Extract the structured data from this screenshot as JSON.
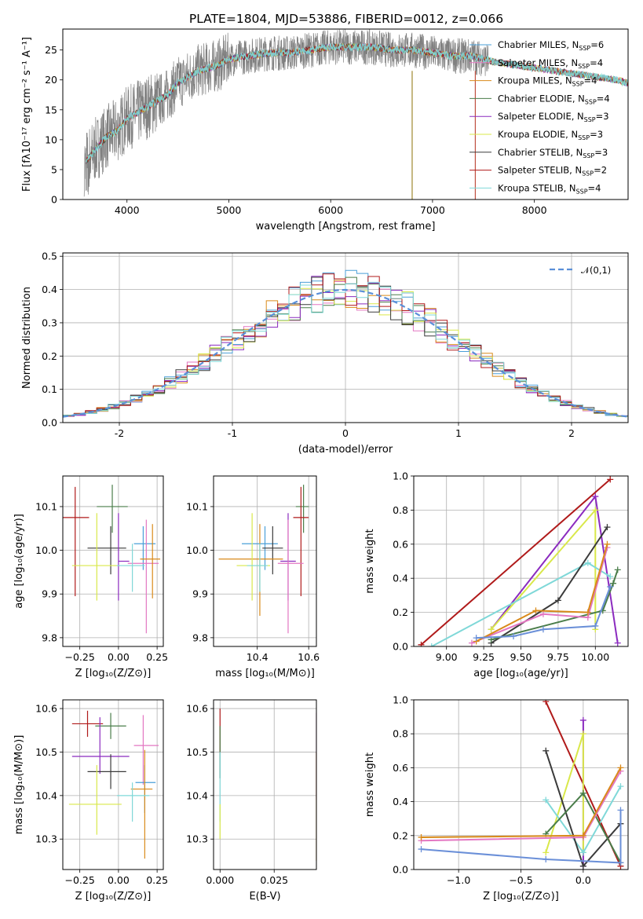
{
  "title": "PLATE=1804, MJD=53886, FIBERID=0012, z=0.066",
  "chart_data": [
    {
      "id": "spectrum",
      "type": "line",
      "xlabel": "wavelength [Angstrom, rest frame]",
      "ylabel": "Flux [fλ10⁻¹⁷ erg cm⁻² s⁻¹ A⁻¹]",
      "xlim": [
        3370,
        8920
      ],
      "ylim": [
        0,
        28.5
      ],
      "xticks": [
        4000,
        5000,
        6000,
        7000,
        8000
      ],
      "yticks": [
        0,
        5,
        10,
        15,
        20,
        25
      ],
      "grid": false,
      "legend_position": "top-right",
      "legend": [
        {
          "base": "Chabrier MILES, N",
          "sub": "SSP",
          "tail": "=6",
          "color": "#4a9fd8"
        },
        {
          "base": "Salpeter MILES, N",
          "sub": "SSP",
          "tail": "=4",
          "color": "#e377c2"
        },
        {
          "base": "Kroupa MILES, N",
          "sub": "SSP",
          "tail": "=4",
          "color": "#d98a1a"
        },
        {
          "base": "Chabrier ELODIE, N",
          "sub": "SSP",
          "tail": "=4",
          "color": "#4a7d4a"
        },
        {
          "base": "Salpeter ELODIE, N",
          "sub": "SSP",
          "tail": "=3",
          "color": "#8b2bbf"
        },
        {
          "base": "Kroupa ELODIE, N",
          "sub": "SSP",
          "tail": "=3",
          "color": "#d9e84a"
        },
        {
          "base": "Chabrier STELIB, N",
          "sub": "SSP",
          "tail": "=3",
          "color": "#3a3a3a"
        },
        {
          "base": "Salpeter STELIB, N",
          "sub": "SSP",
          "tail": "=2",
          "color": "#b01a1a"
        },
        {
          "base": "Kroupa STELIB, N",
          "sub": "SSP",
          "tail": "=4",
          "color": "#7fd8d8"
        }
      ],
      "data_color": "#808080",
      "model_color": "#7fd8d8",
      "continuum": {
        "x": [
          3580,
          3700,
          3800,
          3900,
          4000,
          4100,
          4200,
          4300,
          4400,
          4500,
          4600,
          4700,
          4800,
          4900,
          5000,
          5200,
          5400,
          5600,
          5800,
          6000,
          6200,
          6400,
          6600,
          6800,
          7000,
          7200,
          7400,
          7600,
          7800,
          8000,
          8200,
          8400,
          8600,
          8800,
          8920
        ],
        "y": [
          6,
          8.5,
          10.5,
          11.5,
          13.5,
          14.5,
          15.5,
          16.5,
          17.5,
          19.5,
          20.5,
          21.5,
          22.0,
          22.5,
          23.5,
          24.0,
          24.5,
          24.5,
          25.0,
          25.5,
          25.5,
          25.5,
          25.0,
          25.0,
          24.5,
          24.0,
          24.0,
          23.0,
          22.5,
          22.0,
          21.5,
          21.0,
          20.5,
          20.0,
          19.5
        ]
      },
      "data_range": [
        3580,
        7550
      ],
      "model_range": [
        3600,
        8920
      ],
      "spikes": [
        {
          "x": 6800,
          "y0": 0,
          "y1": 21.5,
          "color": "#a08830"
        },
        {
          "x": 7420,
          "y0": 0,
          "y1": 21.5,
          "color": "#c05040"
        }
      ]
    },
    {
      "id": "residual-histogram",
      "type": "histogram",
      "xlabel": "(data-model)/error",
      "ylabel": "Normed distribution",
      "xlim": [
        -2.5,
        2.5
      ],
      "ylim": [
        0,
        0.51
      ],
      "xticks": [
        -2,
        -1,
        0,
        1,
        2
      ],
      "yticks": [
        0.0,
        0.1,
        0.2,
        0.3,
        0.4,
        0.5
      ],
      "ytick_labels": [
        "0.0",
        "0.1",
        "0.2",
        "0.3",
        "0.4",
        "0.5"
      ],
      "grid": true,
      "bin_width": 0.1,
      "reference": {
        "label": "𝒩(0,1)",
        "color": "#5a8fd8",
        "mean": 0,
        "sigma": 1
      },
      "legend_position": "top-right",
      "series_colors": [
        "#4a9fd8",
        "#e377c2",
        "#d98a1a",
        "#4a7d4a",
        "#8b2bbf",
        "#d9e84a",
        "#3a3a3a",
        "#b01a1a",
        "#7fd8d8"
      ]
    },
    {
      "id": "age-vs-Z",
      "type": "errorbar",
      "xlabel": "Z [log₁₀(Z/Z⊙)]",
      "ylabel": "age  [log₁₀(age/yr)]",
      "xlim": [
        -0.36,
        0.29
      ],
      "ylim": [
        9.78,
        10.17
      ],
      "xticks": [
        -0.25,
        0.0,
        0.25
      ],
      "xtick_labels": [
        "−0.25",
        "0.00",
        "0.25"
      ],
      "yticks": [
        9.8,
        9.9,
        10.0,
        10.1
      ],
      "ytick_labels": [
        "9.8",
        "9.9",
        "10.0",
        "10.1"
      ],
      "grid": true,
      "points": [
        {
          "x": -0.28,
          "y": 10.075,
          "xerr": [
            0.09,
            0.09
          ],
          "yerr": [
            0.18,
            0.07
          ],
          "color": "#b01a1a"
        },
        {
          "x": -0.04,
          "y": 10.1,
          "xerr": [
            0.1,
            0.1
          ],
          "yerr": [
            0.06,
            0.05
          ],
          "color": "#4a7d4a"
        },
        {
          "x": -0.05,
          "y": 10.005,
          "xerr": [
            0.15,
            0.1
          ],
          "yerr": [
            0.06,
            0.05
          ],
          "color": "#3a3a3a"
        },
        {
          "x": 0.0,
          "y": 9.975,
          "xerr": [
            0.0,
            0.07
          ],
          "yerr": [
            0.09,
            0.11
          ],
          "color": "#8b2bbf"
        },
        {
          "x": -0.14,
          "y": 9.965,
          "xerr": [
            0.16,
            0.15
          ],
          "yerr": [
            0.08,
            0.12
          ],
          "color": "#d9e84a"
        },
        {
          "x": 0.16,
          "y": 10.015,
          "xerr": [
            0.06,
            0.08
          ],
          "yerr": [
            0.06,
            0.04
          ],
          "color": "#4a9fd8"
        },
        {
          "x": 0.18,
          "y": 9.97,
          "xerr": [
            0.12,
            0.08
          ],
          "yerr": [
            0.16,
            0.1
          ],
          "color": "#e377c2"
        },
        {
          "x": 0.22,
          "y": 9.98,
          "xerr": [
            0.08,
            0.05
          ],
          "yerr": [
            0.09,
            0.08
          ],
          "color": "#d98a1a"
        },
        {
          "x": 0.09,
          "y": 9.965,
          "xerr": [
            0.1,
            0.08
          ],
          "yerr": [
            0.06,
            0.05
          ],
          "color": "#7fd8d8"
        }
      ]
    },
    {
      "id": "age-vs-mass",
      "type": "errorbar",
      "xlabel": "mass [log₁₀(M/M⊙)]",
      "ylabel": "",
      "xlim": [
        10.23,
        10.63
      ],
      "ylim": [
        9.78,
        10.17
      ],
      "xticks": [
        10.4,
        10.6
      ],
      "xtick_labels": [
        "10.4",
        "10.6"
      ],
      "yticks": [
        9.8,
        9.9,
        10.0,
        10.1
      ],
      "ytick_labels": [
        "9.8",
        "9.9",
        "10.0",
        "10.1"
      ],
      "grid": true,
      "points": [
        {
          "x": 10.58,
          "y": 10.1,
          "xerr": [
            0.03,
            0.02
          ],
          "yerr": [
            0.06,
            0.05
          ],
          "color": "#4a7d4a"
        },
        {
          "x": 10.57,
          "y": 10.075,
          "xerr": [
            0.03,
            0.03
          ],
          "yerr": [
            0.18,
            0.07
          ],
          "color": "#b01a1a"
        },
        {
          "x": 10.43,
          "y": 10.015,
          "xerr": [
            0.09,
            0.05
          ],
          "yerr": [
            0.06,
            0.04
          ],
          "color": "#4a9fd8"
        },
        {
          "x": 10.46,
          "y": 10.005,
          "xerr": [
            0.04,
            0.04
          ],
          "yerr": [
            0.06,
            0.05
          ],
          "color": "#3a3a3a"
        },
        {
          "x": 10.41,
          "y": 9.98,
          "xerr": [
            0.16,
            0.09
          ],
          "yerr": [
            0.13,
            0.08
          ],
          "color": "#d98a1a"
        },
        {
          "x": 10.52,
          "y": 9.975,
          "xerr": [
            0.03,
            0.03
          ],
          "yerr": [
            0.09,
            0.11
          ],
          "color": "#8b2bbf"
        },
        {
          "x": 10.52,
          "y": 9.97,
          "xerr": [
            0.04,
            0.06
          ],
          "yerr": [
            0.16,
            0.1
          ],
          "color": "#e377c2"
        },
        {
          "x": 10.38,
          "y": 9.965,
          "xerr": [
            0.06,
            0.07
          ],
          "yerr": [
            0.08,
            0.12
          ],
          "color": "#d9e84a"
        },
        {
          "x": 10.41,
          "y": 9.965,
          "xerr": [
            0.05,
            0.03
          ],
          "yerr": [
            0.06,
            0.05
          ],
          "color": "#7fd8d8"
        }
      ]
    },
    {
      "id": "massweight-vs-age",
      "type": "line",
      "xlabel": "age  [log₁₀(age/yr)]",
      "ylabel": "mass weight",
      "xlim": [
        8.78,
        10.22
      ],
      "ylim": [
        0.0,
        1.0
      ],
      "xticks": [
        9.0,
        9.25,
        9.5,
        9.75,
        10.0
      ],
      "xtick_labels": [
        "9.00",
        "9.25",
        "9.50",
        "9.75",
        "10.00"
      ],
      "yticks": [
        0.0,
        0.2,
        0.4,
        0.6,
        0.8,
        1.0
      ],
      "ytick_labels": [
        "0.0",
        "0.2",
        "0.4",
        "0.6",
        "0.8",
        "1.0"
      ],
      "grid": true,
      "series": [
        {
          "color": "#b01a1a",
          "x": [
            8.83,
            10.1
          ],
          "y": [
            0.01,
            0.98
          ]
        },
        {
          "color": "#8b2bbf",
          "x": [
            9.3,
            10.0,
            10.15
          ],
          "y": [
            0.1,
            0.88,
            0.02
          ]
        },
        {
          "color": "#d9e84a",
          "x": [
            9.3,
            10.0,
            10.0
          ],
          "y": [
            0.1,
            0.8,
            0.1
          ]
        },
        {
          "color": "#7fd8d8",
          "x": [
            8.9,
            9.95,
            10.1
          ],
          "y": [
            0.0,
            0.49,
            0.41
          ]
        },
        {
          "color": "#3a3a3a",
          "x": [
            9.3,
            9.75,
            10.08
          ],
          "y": [
            0.02,
            0.27,
            0.7
          ]
        },
        {
          "color": "#4a7d4a",
          "x": [
            9.3,
            10.05,
            10.12,
            10.15
          ],
          "y": [
            0.04,
            0.21,
            0.37,
            0.45
          ]
        },
        {
          "color": "#e377c2",
          "x": [
            9.17,
            9.65,
            9.95,
            10.08
          ],
          "y": [
            0.02,
            0.19,
            0.17,
            0.58
          ]
        },
        {
          "color": "#d98a1a",
          "x": [
            9.2,
            9.6,
            9.95,
            10.08
          ],
          "y": [
            0.03,
            0.21,
            0.2,
            0.6
          ]
        },
        {
          "color": "#6a8fd8",
          "x": [
            9.2,
            9.45,
            9.65,
            10.0,
            10.1
          ],
          "y": [
            0.05,
            0.06,
            0.1,
            0.12,
            0.35
          ]
        }
      ]
    },
    {
      "id": "mass-vs-Z",
      "type": "errorbar",
      "xlabel": "Z [log₁₀(Z/Z⊙)]",
      "ylabel": "mass [log₁₀(M/M⊙)]",
      "xlim": [
        -0.36,
        0.29
      ],
      "ylim": [
        10.23,
        10.62
      ],
      "xticks": [
        -0.25,
        0.0,
        0.25
      ],
      "xtick_labels": [
        "−0.25",
        "0.00",
        "0.25"
      ],
      "yticks": [
        10.3,
        10.4,
        10.5,
        10.6
      ],
      "ytick_labels": [
        "10.3",
        "10.4",
        "10.5",
        "10.6"
      ],
      "grid": true,
      "points": [
        {
          "x": -0.2,
          "y": 10.565,
          "xerr": [
            0.1,
            0.1
          ],
          "yerr": [
            0.03,
            0.03
          ],
          "color": "#b01a1a"
        },
        {
          "x": -0.05,
          "y": 10.56,
          "xerr": [
            0.1,
            0.1
          ],
          "yerr": [
            0.03,
            0.03
          ],
          "color": "#4a7d4a"
        },
        {
          "x": -0.12,
          "y": 10.49,
          "xerr": [
            0.18,
            0.19
          ],
          "yerr": [
            0.04,
            0.09
          ],
          "color": "#8b2bbf"
        },
        {
          "x": -0.05,
          "y": 10.455,
          "xerr": [
            0.15,
            0.1
          ],
          "yerr": [
            0.04,
            0.04
          ],
          "color": "#3a3a3a"
        },
        {
          "x": 0.16,
          "y": 10.515,
          "xerr": [
            0.06,
            0.1
          ],
          "yerr": [
            0.09,
            0.07
          ],
          "color": "#e377c2"
        },
        {
          "x": 0.17,
          "y": 10.43,
          "xerr": [
            0.06,
            0.07
          ],
          "yerr": [
            0.07,
            0.04
          ],
          "color": "#4a9fd8"
        },
        {
          "x": 0.17,
          "y": 10.415,
          "xerr": [
            0.09,
            0.05
          ],
          "yerr": [
            0.16,
            0.09
          ],
          "color": "#d98a1a"
        },
        {
          "x": -0.14,
          "y": 10.38,
          "xerr": [
            0.18,
            0.16
          ],
          "yerr": [
            0.07,
            0.09
          ],
          "color": "#d9e84a"
        },
        {
          "x": 0.09,
          "y": 10.4,
          "xerr": [
            0.1,
            0.11
          ],
          "yerr": [
            0.06,
            0.03
          ],
          "color": "#7fd8d8"
        }
      ]
    },
    {
      "id": "mass-vs-ebv",
      "type": "errorbar",
      "xlabel": "E(B-V)",
      "ylabel": "",
      "xlim": [
        -0.003,
        0.0445
      ],
      "ylim": [
        10.23,
        10.62
      ],
      "xticks": [
        0.0,
        0.025
      ],
      "xtick_labels": [
        "0.000",
        "0.025"
      ],
      "yticks": [
        10.3,
        10.4,
        10.5,
        10.6
      ],
      "ytick_labels": [
        "10.3",
        "10.4",
        "10.5",
        "10.6"
      ],
      "grid": true,
      "points": [
        {
          "x": 0.0,
          "y": 10.52,
          "xerr": [
            0,
            0
          ],
          "yerr": [
            0.08,
            0.08
          ],
          "color": "#b01a1a"
        },
        {
          "x": 0.0,
          "y": 10.5,
          "xerr": [
            0,
            0
          ],
          "yerr": [
            0.06,
            0.06
          ],
          "color": "#4a7d4a"
        },
        {
          "x": 0.0,
          "y": 10.42,
          "xerr": [
            0,
            0
          ],
          "yerr": [
            0.08,
            0.08
          ],
          "color": "#7fd8d8"
        },
        {
          "x": 0.0,
          "y": 10.34,
          "xerr": [
            0,
            0
          ],
          "yerr": [
            0.04,
            0.04
          ],
          "color": "#d9e84a"
        },
        {
          "x": 0.0445,
          "y": 10.48,
          "xerr": [
            0,
            0
          ],
          "yerr": [
            0.09,
            0.11
          ],
          "color": "#e377c2"
        },
        {
          "x": 0.0445,
          "y": 10.37,
          "xerr": [
            0,
            0
          ],
          "yerr": [
            0.12,
            0.13
          ],
          "color": "#d98a1a"
        }
      ]
    },
    {
      "id": "massweight-vs-Z",
      "type": "line",
      "xlabel": "Z [log₁₀(Z/Z⊙)]",
      "ylabel": "mass weight",
      "xlim": [
        -1.36,
        0.36
      ],
      "ylim": [
        0.0,
        1.0
      ],
      "xticks": [
        -1.0,
        -0.5,
        0.0
      ],
      "xtick_labels": [
        "−1.0",
        "−0.5",
        "0.0"
      ],
      "yticks": [
        0.0,
        0.2,
        0.4,
        0.6,
        0.8,
        1.0
      ],
      "ytick_labels": [
        "0.0",
        "0.2",
        "0.4",
        "0.6",
        "0.8",
        "1.0"
      ],
      "grid": true,
      "series": [
        {
          "color": "#b01a1a",
          "x": [
            -0.3,
            0.3
          ],
          "y": [
            0.99,
            0.02
          ]
        },
        {
          "color": "#8b2bbf",
          "x": [
            0.0,
            0.0
          ],
          "y": [
            0.88,
            0.02
          ]
        },
        {
          "color": "#d9e84a",
          "x": [
            -0.3,
            0.0,
            0.0
          ],
          "y": [
            0.1,
            0.8,
            0.1
          ]
        },
        {
          "color": "#7fd8d8",
          "x": [
            -0.3,
            0.0,
            0.3
          ],
          "y": [
            0.41,
            0.1,
            0.49
          ]
        },
        {
          "color": "#3a3a3a",
          "x": [
            -0.3,
            0.0,
            0.3
          ],
          "y": [
            0.7,
            0.02,
            0.27
          ]
        },
        {
          "color": "#4a7d4a",
          "x": [
            -0.3,
            0.0,
            0.3
          ],
          "y": [
            0.21,
            0.45,
            0.04
          ]
        },
        {
          "color": "#e377c2",
          "x": [
            -1.3,
            0.0,
            0.3
          ],
          "y": [
            0.17,
            0.19,
            0.58
          ]
        },
        {
          "color": "#d98a1a",
          "x": [
            -1.3,
            0.0,
            0.3
          ],
          "y": [
            0.19,
            0.2,
            0.6
          ]
        },
        {
          "color": "#6a8fd8",
          "x": [
            -1.3,
            -0.3,
            0.3,
            0.3
          ],
          "y": [
            0.12,
            0.06,
            0.04,
            0.35
          ]
        }
      ]
    }
  ]
}
